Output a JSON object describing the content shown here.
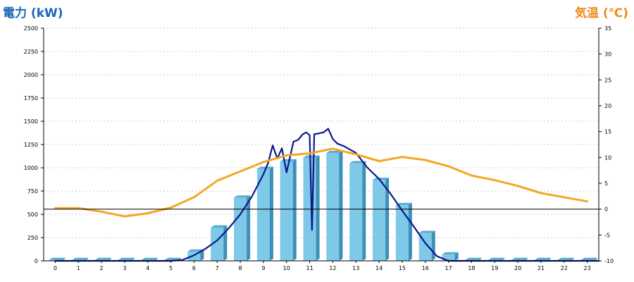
{
  "chart_data": {
    "type": "bar+line",
    "y_left_label": "電力 (kW)",
    "y_right_label": "気温 (℃)",
    "y_left_range": [
      0,
      2500
    ],
    "y_left_ticks": [
      0,
      250,
      500,
      750,
      1000,
      1250,
      1500,
      1750,
      2000,
      2250,
      2500
    ],
    "y_right_range": [
      -10,
      35
    ],
    "y_right_ticks": [
      -10,
      -5,
      0,
      5,
      10,
      15,
      20,
      25,
      30,
      35
    ],
    "grid": true,
    "categories": [
      "0",
      "1",
      "2",
      "3",
      "4",
      "5",
      "6",
      "7",
      "8",
      "9",
      "10",
      "11",
      "12",
      "13",
      "14",
      "15",
      "16",
      "17",
      "18",
      "19",
      "20",
      "21",
      "22",
      "23"
    ],
    "series": [
      {
        "kind": "bar",
        "axis": "left",
        "color": "#7ec8e8",
        "values": [
          10,
          10,
          10,
          10,
          10,
          10,
          100,
          360,
          680,
          990,
          1070,
          1110,
          1160,
          1050,
          870,
          600,
          300,
          70,
          10,
          10,
          10,
          10,
          10,
          10
        ]
      },
      {
        "kind": "line",
        "axis": "left",
        "color": "#0a1a8c",
        "x": [
          0,
          5,
          5.5,
          6,
          6.5,
          7,
          7.5,
          8,
          8.5,
          9,
          9.2,
          9.4,
          9.6,
          9.8,
          10,
          10.3,
          10.5,
          10.7,
          10.85,
          11,
          11.1,
          11.2,
          11.4,
          11.6,
          11.8,
          12,
          12.2,
          12.5,
          13,
          13.5,
          14,
          14.5,
          15,
          15.5,
          16,
          16.5,
          17,
          23.5
        ],
        "values": [
          0,
          0,
          10,
          60,
          130,
          220,
          350,
          500,
          690,
          930,
          1050,
          1240,
          1100,
          1210,
          950,
          1280,
          1300,
          1360,
          1380,
          1350,
          330,
          1360,
          1370,
          1380,
          1420,
          1310,
          1260,
          1230,
          1160,
          1000,
          880,
          720,
          540,
          370,
          190,
          50,
          0,
          0
        ]
      },
      {
        "kind": "line",
        "axis": "right",
        "color": "#f5a623",
        "x": [
          0,
          1,
          2,
          3,
          4,
          5,
          6,
          7,
          8,
          9,
          10,
          11,
          12,
          13,
          14,
          15,
          16,
          17,
          18,
          19,
          20,
          21,
          22,
          23
        ],
        "values": [
          0.2,
          0.2,
          -0.5,
          -1.4,
          -0.8,
          0.3,
          2.3,
          5.5,
          7.3,
          9.1,
          10.4,
          10.8,
          11.7,
          10.6,
          9.3,
          10.1,
          9.5,
          8.3,
          6.5,
          5.6,
          4.5,
          3.1,
          2.3,
          1.5
        ]
      }
    ]
  }
}
